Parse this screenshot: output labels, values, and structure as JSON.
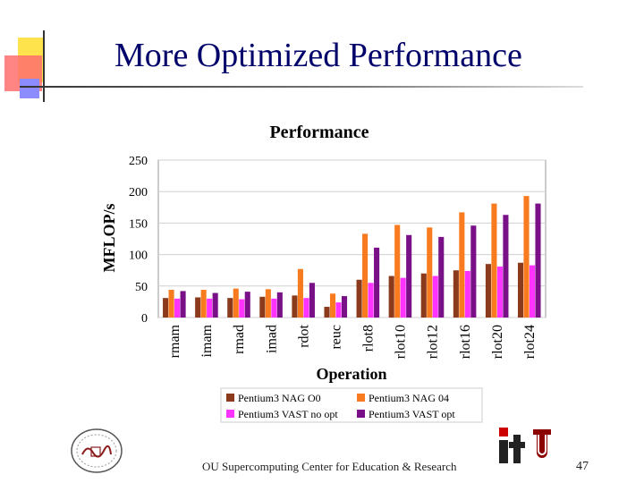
{
  "slide": {
    "title": "More Optimized Performance",
    "footer": "OU Supercomputing Center for Education & Research",
    "page_number": "47"
  },
  "colors": {
    "title": "#00006a",
    "series": [
      "#8b3a1c",
      "#f97b1f",
      "#ff33ff",
      "#7a1087"
    ],
    "grid": "#d0d0d0"
  },
  "chart_data": {
    "type": "bar",
    "title": "Performance",
    "xlabel": "Operation",
    "ylabel": "MFLOP/s",
    "ylim": [
      0,
      250
    ],
    "yticks": [
      0,
      50,
      100,
      150,
      200,
      250
    ],
    "grid": true,
    "legend_position": "bottom",
    "categories": [
      "rmam",
      "imam",
      "rmad",
      "imad",
      "rdot",
      "reuc",
      "rlot8",
      "rlot10",
      "rlot12",
      "rlot16",
      "rlot20",
      "rlot24"
    ],
    "series": [
      {
        "name": "Pentium3 NAG O0",
        "values": [
          31,
          32,
          31,
          33,
          35,
          17,
          60,
          66,
          70,
          75,
          85,
          87
        ]
      },
      {
        "name": "Pentium3 NAG 04",
        "values": [
          44,
          44,
          46,
          45,
          77,
          38,
          133,
          147,
          143,
          167,
          181,
          193
        ]
      },
      {
        "name": "Pentium3 VAST no opt",
        "values": [
          30,
          30,
          29,
          30,
          31,
          24,
          55,
          63,
          66,
          74,
          81,
          83
        ]
      },
      {
        "name": "Pentium3 VAST opt",
        "values": [
          42,
          39,
          41,
          40,
          55,
          34,
          111,
          131,
          128,
          146,
          163,
          181
        ]
      }
    ]
  }
}
